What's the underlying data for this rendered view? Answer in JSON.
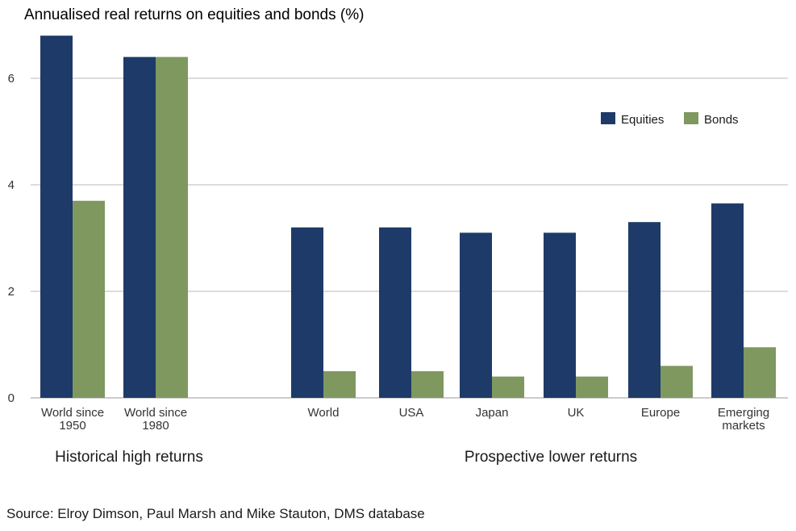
{
  "chart_data": {
    "type": "bar",
    "title": "Annualised real returns on equities and bonds (%)",
    "categories": [
      [
        "World since",
        "1950"
      ],
      [
        "World since",
        "1980"
      ],
      [
        "World"
      ],
      [
        "USA"
      ],
      [
        "Japan"
      ],
      [
        "UK"
      ],
      [
        "Europe"
      ],
      [
        "Emerging",
        "markets"
      ]
    ],
    "series": [
      {
        "name": "Equities",
        "color": "#1e3a68",
        "values": [
          6.8,
          6.4,
          3.2,
          3.2,
          3.1,
          3.1,
          3.3,
          3.65
        ]
      },
      {
        "name": "Bonds",
        "color": "#7e9860",
        "values": [
          3.7,
          6.4,
          0.5,
          0.5,
          0.4,
          0.4,
          0.6,
          0.95
        ]
      }
    ],
    "ylim": [
      0,
      7
    ],
    "yticks": [
      0,
      2,
      4,
      6
    ],
    "grid": true,
    "legend": "top-right",
    "group_labels": [
      "Historical high returns",
      "Prospective lower returns"
    ]
  },
  "source": "Source: Elroy Dimson, Paul Marsh and Mike Stauton, DMS database"
}
